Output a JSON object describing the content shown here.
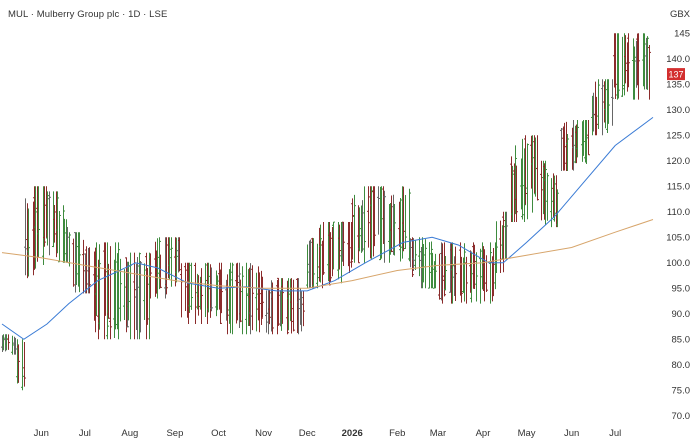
{
  "header": {
    "title": "MUL · Mulberry Group plc · 1D · LSE",
    "currency": "GBX"
  },
  "colors": {
    "up": "#3e8b3e",
    "down": "#8b2b2b",
    "neutral": "#666666",
    "ma_fast": "#3a7bd5",
    "ma_slow": "#d7a56b",
    "price_tag": "#d32f2f"
  },
  "chart_data": {
    "type": "ohlc",
    "title": "",
    "xlabel": "",
    "ylabel": "",
    "ylim": [
      68,
      148
    ],
    "yticks": [
      70.0,
      75.0,
      80.0,
      85.0,
      90.0,
      95.0,
      100.0,
      105.0,
      110.0,
      115.0,
      120.0,
      125.0,
      130.0,
      135.0,
      140.0,
      145.0
    ],
    "ytick_labels": [
      "70.0",
      "75.0",
      "80.0",
      "85.0",
      "90.0",
      "95.0",
      "100.0",
      "105.0",
      "110.0",
      "115.0",
      "120.0",
      "125.0",
      "130.0",
      "135.0",
      "140.0",
      "145"
    ],
    "xticks": [
      {
        "label": "Jun",
        "date": "2025-06-01"
      },
      {
        "label": "Jul",
        "date": "2025-07-01"
      },
      {
        "label": "Aug",
        "date": "2025-08-01"
      },
      {
        "label": "Sep",
        "date": "2025-09-01"
      },
      {
        "label": "Oct",
        "date": "2025-10-01"
      },
      {
        "label": "Nov",
        "date": "2025-11-01"
      },
      {
        "label": "Dec",
        "date": "2025-12-01"
      },
      {
        "label": "2026",
        "date": "2026-01-01"
      },
      {
        "label": "Feb",
        "date": "2026-02-01"
      },
      {
        "label": "Mar",
        "date": "2026-03-01"
      },
      {
        "label": "Apr",
        "date": "2026-04-01"
      },
      {
        "label": "May",
        "date": "2026-05-01"
      },
      {
        "label": "Jun",
        "date": "2026-06-01"
      },
      {
        "label": "Jul",
        "date": "2026-07-01"
      }
    ],
    "x_range": [
      "2025-05-05",
      "2026-07-27"
    ],
    "last_price": {
      "value": 137,
      "label": "137"
    },
    "grid": false,
    "segments": [
      {
        "start": "2025-05-05",
        "end": "2025-05-15",
        "lo": 82,
        "hi": 86,
        "trend": "down"
      },
      {
        "start": "2025-05-15",
        "end": "2025-05-21",
        "lo": 75,
        "hi": 85,
        "trend": "flat"
      },
      {
        "start": "2025-05-21",
        "end": "2025-06-05",
        "lo": 97,
        "hi": 115,
        "trend": "up"
      },
      {
        "start": "2025-06-05",
        "end": "2025-06-20",
        "lo": 100,
        "hi": 114,
        "trend": "down"
      },
      {
        "start": "2025-06-20",
        "end": "2025-07-05",
        "lo": 94,
        "hi": 106,
        "trend": "down"
      },
      {
        "start": "2025-07-05",
        "end": "2025-07-25",
        "lo": 85,
        "hi": 104,
        "trend": "flat"
      },
      {
        "start": "2025-07-25",
        "end": "2025-08-15",
        "lo": 85,
        "hi": 102,
        "trend": "flat"
      },
      {
        "start": "2025-08-15",
        "end": "2025-09-05",
        "lo": 93,
        "hi": 105,
        "trend": "up"
      },
      {
        "start": "2025-09-05",
        "end": "2025-10-05",
        "lo": 88,
        "hi": 100,
        "trend": "flat"
      },
      {
        "start": "2025-10-05",
        "end": "2025-11-01",
        "lo": 86,
        "hi": 100,
        "trend": "flat"
      },
      {
        "start": "2025-11-01",
        "end": "2025-12-01",
        "lo": 86,
        "hi": 97,
        "trend": "flat"
      },
      {
        "start": "2025-12-01",
        "end": "2026-01-01",
        "lo": 95,
        "hi": 108,
        "trend": "up"
      },
      {
        "start": "2026-01-01",
        "end": "2026-01-20",
        "lo": 100,
        "hi": 115,
        "trend": "up"
      },
      {
        "start": "2026-01-20",
        "end": "2026-02-10",
        "lo": 100,
        "hi": 115,
        "trend": "flat"
      },
      {
        "start": "2026-02-10",
        "end": "2026-03-01",
        "lo": 95,
        "hi": 105,
        "trend": "down"
      },
      {
        "start": "2026-03-01",
        "end": "2026-04-10",
        "lo": 92,
        "hi": 104,
        "trend": "flat"
      },
      {
        "start": "2026-04-10",
        "end": "2026-04-20",
        "lo": 98,
        "hi": 110,
        "trend": "up"
      },
      {
        "start": "2026-04-20",
        "end": "2026-05-10",
        "lo": 108,
        "hi": 125,
        "trend": "up"
      },
      {
        "start": "2026-05-10",
        "end": "2026-05-25",
        "lo": 107,
        "hi": 120,
        "trend": "down"
      },
      {
        "start": "2026-05-25",
        "end": "2026-06-15",
        "lo": 118,
        "hi": 128,
        "trend": "up"
      },
      {
        "start": "2026-06-15",
        "end": "2026-06-30",
        "lo": 125,
        "hi": 136,
        "trend": "up"
      },
      {
        "start": "2026-06-30",
        "end": "2026-07-27",
        "lo": 132,
        "hi": 145,
        "trend": "flat"
      }
    ],
    "series": [
      {
        "key": "ma_fast",
        "points": [
          {
            "x": "2025-05-05",
            "y": 88.0
          },
          {
            "x": "2025-05-20",
            "y": 85.0
          },
          {
            "x": "2025-06-05",
            "y": 88.0
          },
          {
            "x": "2025-06-20",
            "y": 92.0
          },
          {
            "x": "2025-07-10",
            "y": 96.5
          },
          {
            "x": "2025-07-25",
            "y": 98.5
          },
          {
            "x": "2025-08-05",
            "y": 100.0
          },
          {
            "x": "2025-08-20",
            "y": 99.0
          },
          {
            "x": "2025-09-10",
            "y": 96.0
          },
          {
            "x": "2025-10-01",
            "y": 95.0
          },
          {
            "x": "2025-10-20",
            "y": 95.3
          },
          {
            "x": "2025-11-10",
            "y": 94.5
          },
          {
            "x": "2025-12-01",
            "y": 94.5
          },
          {
            "x": "2025-12-20",
            "y": 96.5
          },
          {
            "x": "2026-01-10",
            "y": 100.0
          },
          {
            "x": "2026-02-05",
            "y": 104.0
          },
          {
            "x": "2026-02-25",
            "y": 105.0
          },
          {
            "x": "2026-03-15",
            "y": 103.5
          },
          {
            "x": "2026-04-05",
            "y": 100.0
          },
          {
            "x": "2026-04-15",
            "y": 100.0
          },
          {
            "x": "2026-05-01",
            "y": 104.0
          },
          {
            "x": "2026-05-20",
            "y": 109.0
          },
          {
            "x": "2026-06-10",
            "y": 116.0
          },
          {
            "x": "2026-07-01",
            "y": 123.0
          },
          {
            "x": "2026-07-27",
            "y": 128.5
          }
        ]
      },
      {
        "key": "ma_slow",
        "points": [
          {
            "x": "2025-05-05",
            "y": 102.0
          },
          {
            "x": "2025-06-01",
            "y": 101.0
          },
          {
            "x": "2025-07-01",
            "y": 99.5
          },
          {
            "x": "2025-08-01",
            "y": 98.0
          },
          {
            "x": "2025-09-01",
            "y": 96.5
          },
          {
            "x": "2025-10-01",
            "y": 95.5
          },
          {
            "x": "2025-11-01",
            "y": 95.0
          },
          {
            "x": "2025-12-01",
            "y": 95.0
          },
          {
            "x": "2026-01-01",
            "y": 96.5
          },
          {
            "x": "2026-02-01",
            "y": 98.5
          },
          {
            "x": "2026-03-01",
            "y": 99.5
          },
          {
            "x": "2026-04-01",
            "y": 100.0
          },
          {
            "x": "2026-05-01",
            "y": 101.5
          },
          {
            "x": "2026-06-01",
            "y": 103.0
          },
          {
            "x": "2026-07-01",
            "y": 106.0
          },
          {
            "x": "2026-07-27",
            "y": 108.5
          }
        ]
      }
    ]
  }
}
